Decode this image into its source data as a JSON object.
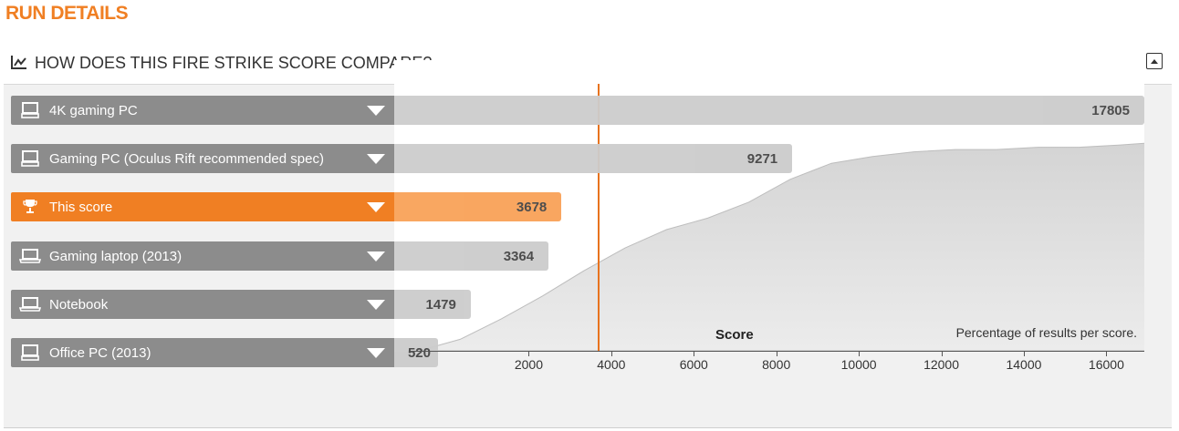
{
  "page": {
    "title": "RUN DETAILS"
  },
  "panel": {
    "title": "HOW DOES THIS FIRE STRIKE SCORE COMPARE?",
    "header_icon": "line-chart-icon",
    "collapse_icon": "collapse-icon"
  },
  "rows": [
    {
      "label": "4K gaming PC",
      "score": "17805",
      "icon": "desktop-icon",
      "active": false
    },
    {
      "label": "Gaming PC (Oculus Rift recommended spec)",
      "score": "9271",
      "icon": "desktop-icon",
      "active": false
    },
    {
      "label": "This score",
      "score": "3678",
      "icon": "trophy-icon",
      "active": true
    },
    {
      "label": "Gaming laptop (2013)",
      "score": "3364",
      "icon": "laptop-icon",
      "active": false
    },
    {
      "label": "Notebook",
      "score": "1479",
      "icon": "laptop-icon",
      "active": false
    },
    {
      "label": "Office PC (2013)",
      "score": "520",
      "icon": "desktop-icon",
      "active": false
    }
  ],
  "chart_data": {
    "type": "area",
    "xlabel": "Score",
    "note": "Percentage of results per score.",
    "xlim": [
      0,
      17805
    ],
    "x_ticks": [
      "2000",
      "4000",
      "6000",
      "8000",
      "10000",
      "12000",
      "14000",
      "16000"
    ],
    "x_tick_values": [
      2000,
      4000,
      6000,
      8000,
      10000,
      12000,
      14000,
      16000
    ],
    "marker_value": 3678,
    "series": [
      {
        "x": [
          0,
          1000,
          2000,
          3000,
          4000,
          5000,
          6000,
          7000,
          8000,
          9000,
          10000,
          11000,
          12000,
          13000,
          14000,
          15000,
          16000,
          17000,
          17805
        ],
        "y": [
          0,
          5,
          14,
          24,
          35,
          45,
          53,
          58,
          65,
          75,
          82,
          85,
          87,
          88,
          88,
          89,
          89,
          90,
          91
        ]
      }
    ],
    "colors": {
      "accent": "#f07f23",
      "bar": "#cccccc",
      "bar_active": "#f9a258",
      "label": "#8c8c8c",
      "area": "#d9d9d9"
    }
  }
}
